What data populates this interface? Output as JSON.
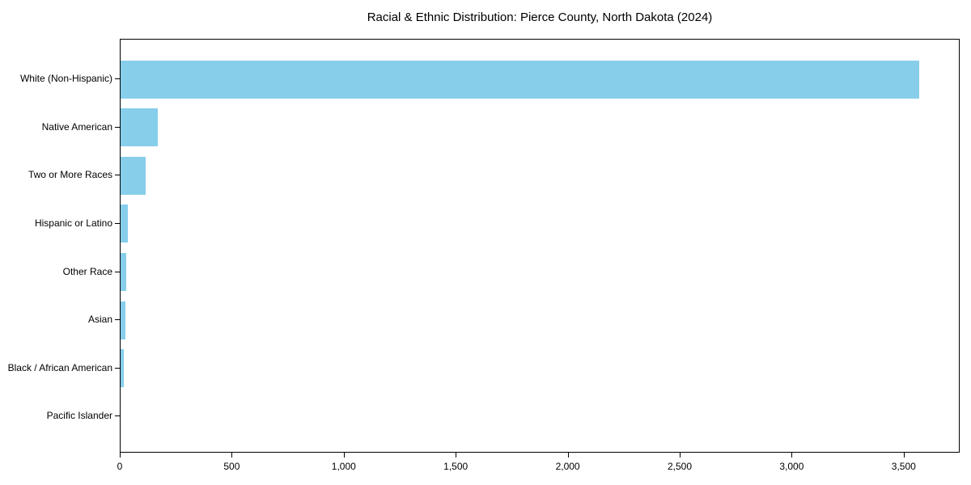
{
  "chart_data": {
    "type": "bar",
    "orientation": "horizontal",
    "title": "Racial & Ethnic Distribution: Pierce County, North Dakota (2024)",
    "categories": [
      "White (Non-Hispanic)",
      "Native American",
      "Two or More Races",
      "Hispanic or Latino",
      "Other Race",
      "Asian",
      "Black / African American",
      "Pacific Islander"
    ],
    "values": [
      3567,
      165,
      113,
      32,
      25,
      20,
      14,
      0
    ],
    "xlabel": "",
    "ylabel": "",
    "xlim": [
      0,
      3750
    ],
    "x_ticks": [
      0,
      500,
      1000,
      1500,
      2000,
      2500,
      3000,
      3500
    ],
    "x_tick_labels": [
      "0",
      "500",
      "1,000",
      "1,500",
      "2,000",
      "2,500",
      "3,000",
      "3,500"
    ],
    "bar_color": "#87CEEB",
    "axis_color": "#000000",
    "background_color": "#FFFFFF",
    "grid": false,
    "legend": null
  }
}
